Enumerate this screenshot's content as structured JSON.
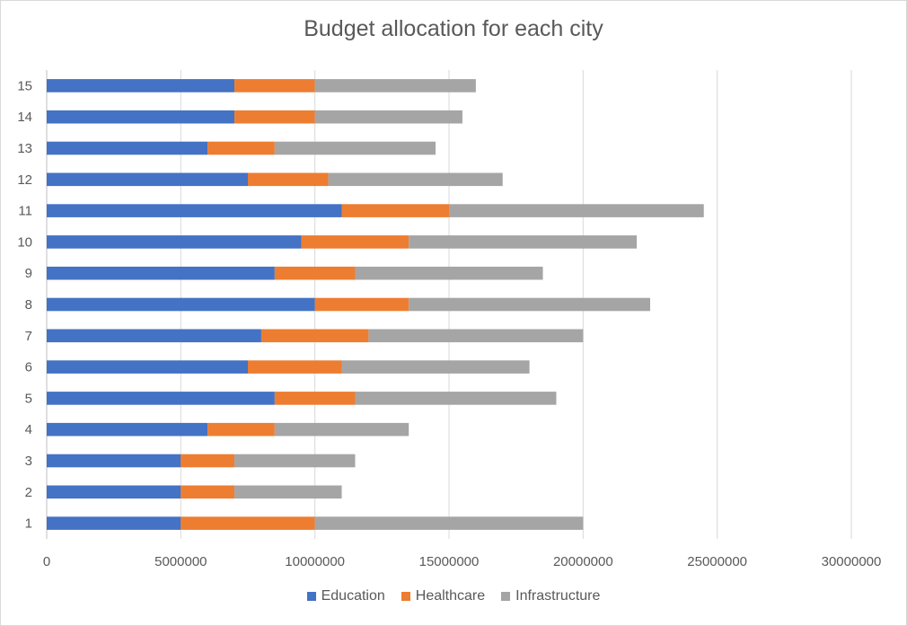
{
  "chart_data": {
    "type": "bar",
    "orientation": "horizontal",
    "stacked": true,
    "title": "Budget allocation for each city",
    "categories": [
      "1",
      "2",
      "3",
      "4",
      "5",
      "6",
      "7",
      "8",
      "9",
      "10",
      "11",
      "12",
      "13",
      "14",
      "15"
    ],
    "series": [
      {
        "name": "Education",
        "color": "#4472c4",
        "values": [
          5000000,
          5000000,
          5000000,
          6000000,
          8500000,
          7500000,
          8000000,
          10000000,
          8500000,
          9500000,
          11000000,
          7500000,
          6000000,
          7000000,
          7000000
        ]
      },
      {
        "name": "Healthcare",
        "color": "#ed7d31",
        "values": [
          5000000,
          2000000,
          2000000,
          2500000,
          3000000,
          3500000,
          4000000,
          3500000,
          3000000,
          4000000,
          4000000,
          3000000,
          2500000,
          3000000,
          3000000
        ]
      },
      {
        "name": "Infrastructure",
        "color": "#a5a5a5",
        "values": [
          10000000,
          4000000,
          4500000,
          5000000,
          7500000,
          7000000,
          8000000,
          9000000,
          7000000,
          8500000,
          9500000,
          6500000,
          6000000,
          5500000,
          6000000
        ]
      }
    ],
    "x_ticks": [
      "0",
      "5000000",
      "10000000",
      "15000000",
      "20000000",
      "25000000",
      "30000000"
    ],
    "xlim": [
      0,
      30000000
    ],
    "grid": true,
    "legend_position": "bottom"
  }
}
